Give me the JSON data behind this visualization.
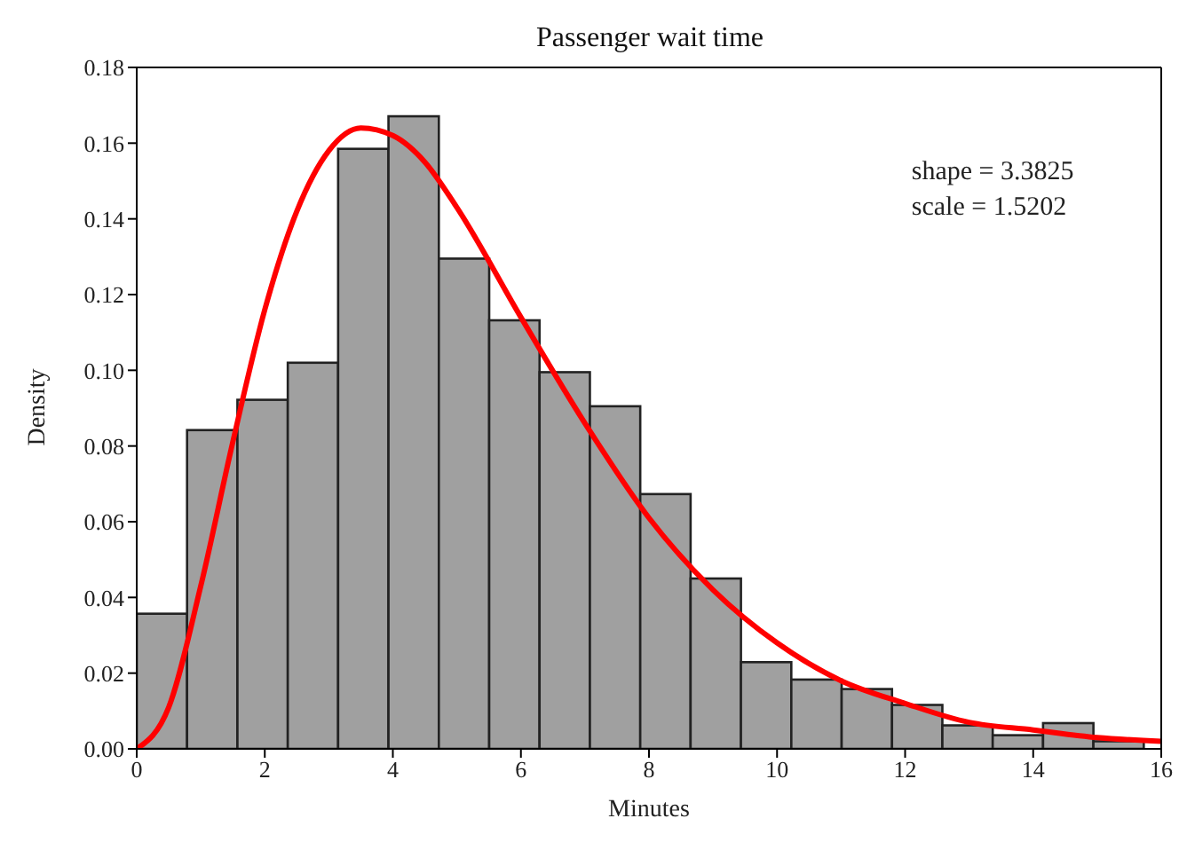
{
  "chart_data": {
    "type": "histogram",
    "title": "Passenger wait time",
    "xlabel": "Minutes",
    "ylabel": "Density",
    "bins": [
      0,
      0.785,
      1.57,
      2.355,
      3.14,
      3.925,
      4.71,
      5.495,
      6.28,
      7.065,
      7.85,
      8.635,
      9.42,
      10.205,
      10.99,
      11.775,
      12.56,
      13.345,
      14.13,
      14.915,
      15.7
    ],
    "values": [
      0.0357,
      0.0842,
      0.0922,
      0.102,
      0.1585,
      0.1671,
      0.1295,
      0.1132,
      0.0995,
      0.0905,
      0.0673,
      0.045,
      0.0229,
      0.0183,
      0.0158,
      0.0116,
      0.0062,
      0.0036,
      0.0068,
      0.002
    ],
    "color": "#a0a0a0",
    "series": [
      {
        "type": "line",
        "color": "#ff0000",
        "x": [
          0,
          0.5,
          1,
          1.5,
          2,
          2.5,
          3,
          3.5,
          4,
          4.5,
          5,
          6,
          7,
          8,
          9,
          10,
          11,
          12,
          13,
          14,
          15,
          16
        ],
        "values": [
          0,
          0.011,
          0.043,
          0.081,
          0.116,
          0.142,
          0.158,
          0.164,
          0.162,
          0.155,
          0.143,
          0.114,
          0.086,
          0.061,
          0.042,
          0.028,
          0.018,
          0.012,
          0.007,
          0.005,
          0.003,
          0.002
        ]
      }
    ],
    "annotations": [
      "shape = 3.3825",
      "scale = 1.5202"
    ],
    "xlim": [
      0,
      16
    ],
    "xticks": [
      0,
      2,
      4,
      6,
      8,
      10,
      12,
      14,
      16
    ],
    "ylim": [
      0,
      0.18
    ],
    "yticks": [
      {
        "value": 0,
        "label": "0.00"
      },
      {
        "value": 0.02,
        "label": "0.02"
      },
      {
        "value": 0.04,
        "label": "0.04"
      },
      {
        "value": 0.06,
        "label": "0.06"
      },
      {
        "value": 0.08,
        "label": "0.08"
      },
      {
        "value": 0.1,
        "label": "0.10"
      },
      {
        "value": 0.12,
        "label": "0.12"
      },
      {
        "value": 0.14,
        "label": "0.14"
      },
      {
        "value": 0.16,
        "label": "0.16"
      },
      {
        "value": 0.18,
        "label": "0.18"
      }
    ],
    "grid": false,
    "legend": false
  }
}
